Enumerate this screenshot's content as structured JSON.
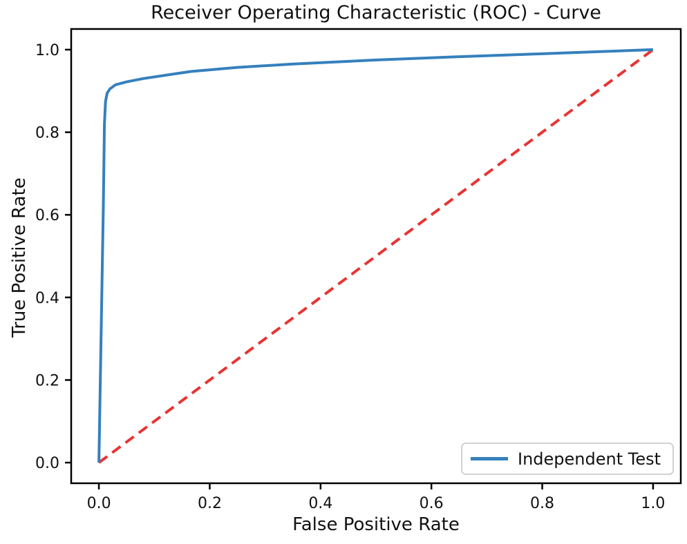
{
  "figure": {
    "background": "#ffffff"
  },
  "chart_data": {
    "type": "line",
    "title": "Receiver Operating Characteristic (ROC) - Curve",
    "xlabel": "False Positive Rate",
    "ylabel": "True Positive Rate",
    "xlim": [
      -0.05,
      1.05
    ],
    "ylim": [
      -0.05,
      1.05
    ],
    "xticks": [
      0.0,
      0.2,
      0.4,
      0.6,
      0.8,
      1.0
    ],
    "yticks": [
      0.0,
      0.2,
      0.4,
      0.6,
      0.8,
      1.0
    ],
    "xtick_labels": [
      "0.0",
      "0.2",
      "0.4",
      "0.6",
      "0.8",
      "1.0"
    ],
    "ytick_labels": [
      "0.0",
      "0.2",
      "0.4",
      "0.6",
      "0.8",
      "1.0"
    ],
    "grid": false,
    "legend": {
      "position": "lower right",
      "entries": [
        {
          "label": "Independent Test",
          "color": "#3580bd",
          "style": "solid"
        }
      ]
    },
    "series": [
      {
        "name": "Chance diagonal",
        "color": "#e93333",
        "style": "dashed",
        "linewidth": 4,
        "in_legend": false,
        "points": [
          [
            0.0,
            0.0
          ],
          [
            1.0,
            1.0
          ]
        ]
      },
      {
        "name": "Independent Test",
        "color": "#3580bd",
        "style": "solid",
        "linewidth": 4,
        "in_legend": true,
        "points": [
          [
            0.0,
            0.0
          ],
          [
            0.008,
            0.62
          ],
          [
            0.01,
            0.82
          ],
          [
            0.012,
            0.875
          ],
          [
            0.015,
            0.895
          ],
          [
            0.02,
            0.905
          ],
          [
            0.03,
            0.915
          ],
          [
            0.05,
            0.922
          ],
          [
            0.08,
            0.93
          ],
          [
            0.12,
            0.938
          ],
          [
            0.165,
            0.947
          ],
          [
            0.25,
            0.957
          ],
          [
            0.35,
            0.965
          ],
          [
            0.5,
            0.975
          ],
          [
            0.65,
            0.983
          ],
          [
            0.8,
            0.99
          ],
          [
            0.9,
            0.995
          ],
          [
            1.0,
            1.0
          ]
        ]
      }
    ],
    "colors": {
      "axis": "#000000",
      "text": "#111111",
      "legend_border": "#cccccc",
      "legend_fill": "#ffffff"
    }
  }
}
